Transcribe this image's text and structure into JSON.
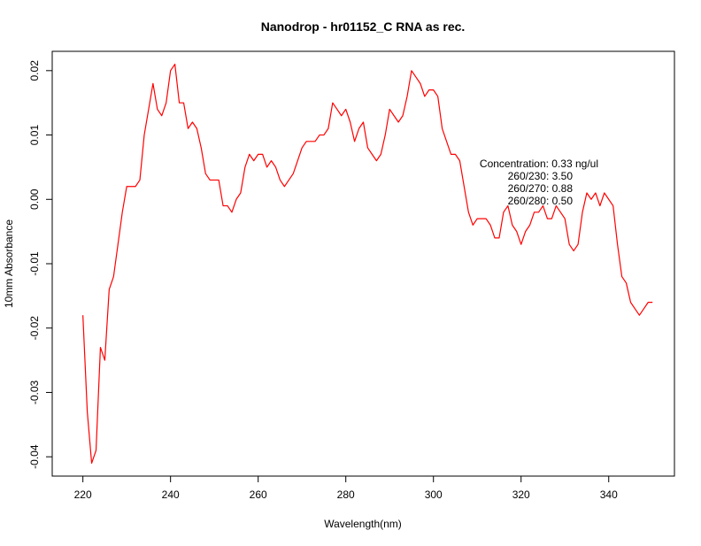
{
  "chart_data": {
    "type": "line",
    "title": "Nanodrop - hr01152_C RNA as rec.",
    "xlabel": "Wavelength(nm)",
    "ylabel": "10mm Absorbance",
    "xlim": [
      213,
      355
    ],
    "ylim": [
      -0.043,
      0.023
    ],
    "x_ticks": [
      220,
      240,
      260,
      280,
      300,
      320,
      340
    ],
    "x_tick_labels": [
      "220",
      "240",
      "260",
      "280",
      "300",
      "320",
      "340"
    ],
    "y_ticks": [
      -0.04,
      -0.03,
      -0.02,
      -0.01,
      0.0,
      0.01,
      0.02
    ],
    "y_tick_labels": [
      "-0.04",
      "-0.03",
      "-0.02",
      "-0.01",
      "0.00",
      "0.01",
      "0.02"
    ],
    "grid": false,
    "line_color": "#ff0000",
    "annotation_lines": [
      "Concentration: 0.33 ng/ul",
      "260/230: 3.50",
      "260/270: 0.88",
      "260/280: 0.50"
    ],
    "x": [
      220,
      221,
      222,
      223,
      224,
      225,
      226,
      227,
      228,
      229,
      230,
      231,
      232,
      233,
      234,
      235,
      236,
      237,
      238,
      239,
      240,
      241,
      242,
      243,
      244,
      245,
      246,
      247,
      248,
      249,
      250,
      251,
      252,
      253,
      254,
      255,
      256,
      257,
      258,
      259,
      260,
      261,
      262,
      263,
      264,
      265,
      266,
      267,
      268,
      269,
      270,
      271,
      272,
      273,
      274,
      275,
      276,
      277,
      278,
      279,
      280,
      281,
      282,
      283,
      284,
      285,
      286,
      287,
      288,
      289,
      290,
      291,
      292,
      293,
      294,
      295,
      296,
      297,
      298,
      299,
      300,
      301,
      302,
      303,
      304,
      305,
      306,
      307,
      308,
      309,
      310,
      311,
      312,
      313,
      314,
      315,
      316,
      317,
      318,
      319,
      320,
      321,
      322,
      323,
      324,
      325,
      326,
      327,
      328,
      329,
      330,
      331,
      332,
      333,
      334,
      335,
      336,
      337,
      338,
      339,
      340,
      341,
      342,
      343,
      344,
      345,
      346,
      347,
      348,
      349,
      350
    ],
    "y": [
      -0.018,
      -0.033,
      -0.041,
      -0.039,
      -0.023,
      -0.025,
      -0.014,
      -0.012,
      -0.007,
      -0.002,
      0.002,
      0.002,
      0.002,
      0.003,
      0.01,
      0.014,
      0.018,
      0.014,
      0.013,
      0.015,
      0.02,
      0.021,
      0.015,
      0.015,
      0.011,
      0.012,
      0.011,
      0.008,
      0.004,
      0.003,
      0.003,
      0.003,
      -0.001,
      -0.001,
      -0.002,
      0.0,
      0.001,
      0.005,
      0.007,
      0.006,
      0.007,
      0.007,
      0.005,
      0.006,
      0.005,
      0.003,
      0.002,
      0.003,
      0.004,
      0.006,
      0.008,
      0.009,
      0.009,
      0.009,
      0.01,
      0.01,
      0.011,
      0.015,
      0.014,
      0.013,
      0.014,
      0.012,
      0.009,
      0.011,
      0.012,
      0.008,
      0.007,
      0.006,
      0.007,
      0.01,
      0.014,
      0.013,
      0.012,
      0.013,
      0.016,
      0.02,
      0.019,
      0.018,
      0.016,
      0.017,
      0.017,
      0.016,
      0.011,
      0.009,
      0.007,
      0.007,
      0.006,
      0.002,
      -0.002,
      -0.004,
      -0.003,
      -0.003,
      -0.003,
      -0.004,
      -0.006,
      -0.006,
      -0.002,
      -0.001,
      -0.004,
      -0.005,
      -0.007,
      -0.005,
      -0.004,
      -0.002,
      -0.002,
      -0.001,
      -0.003,
      -0.003,
      -0.001,
      -0.002,
      -0.003,
      -0.007,
      -0.008,
      -0.007,
      -0.002,
      0.001,
      0.0,
      0.001,
      -0.001,
      0.001,
      0.0,
      -0.001,
      -0.007,
      -0.012,
      -0.013,
      -0.016,
      -0.017,
      -0.018,
      -0.017,
      -0.016,
      -0.016
    ]
  }
}
